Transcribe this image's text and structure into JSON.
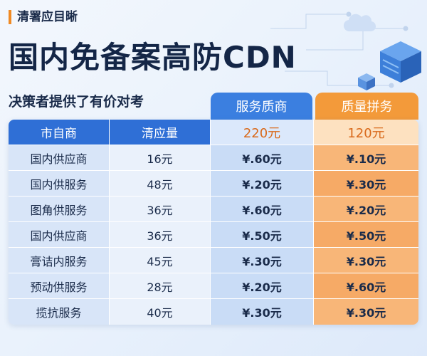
{
  "tag": "清署应目晰",
  "title": "国内免备案高防CDN",
  "subtitle": "决策者提供了有价对考",
  "columns": {
    "col3_head": "服务质商",
    "col4_head": "质量拼务"
  },
  "table": {
    "header": {
      "c1": "市自商",
      "c2": "清应量",
      "c3": "220元",
      "c4": "120元"
    },
    "rows": [
      {
        "c1": "国内供应商",
        "c2": "16元",
        "c3": "¥.60元",
        "c4": "¥.10元"
      },
      {
        "c1": "国内供服务",
        "c2": "48元",
        "c3": "¥.20元",
        "c4": "¥.30元"
      },
      {
        "c1": "图角供服务",
        "c2": "36元",
        "c3": "¥.60元",
        "c4": "¥.20元"
      },
      {
        "c1": "国内供应商",
        "c2": "36元",
        "c3": "¥.50元",
        "c4": "¥.50元"
      },
      {
        "c1": "膏诘内服务",
        "c2": "45元",
        "c3": "¥.30元",
        "c4": "¥.30元"
      },
      {
        "c1": "预动供服务",
        "c2": "28元",
        "c3": "¥.20元",
        "c4": "¥.60元"
      },
      {
        "c1": "揽抗服务",
        "c2": "40元",
        "c3": "¥.30元",
        "c4": "¥.30元"
      }
    ]
  },
  "colors": {
    "accent_blue": "#2f6fd6",
    "accent_orange": "#f39a3a",
    "title_color": "#142647"
  },
  "icons": [
    "cloud-icon",
    "server-cube-icon",
    "network-lines-icon"
  ]
}
